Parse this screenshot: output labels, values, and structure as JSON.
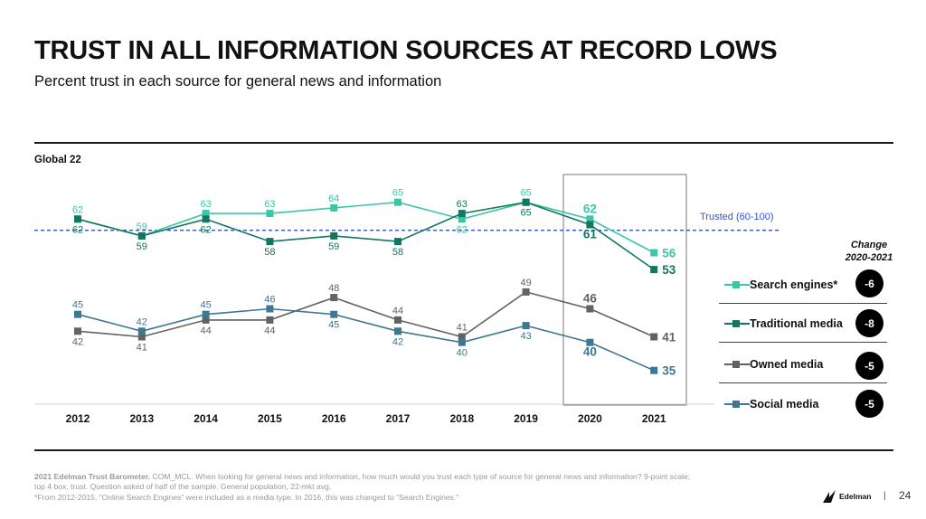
{
  "title": "TRUST IN ALL INFORMATION SOURCES AT RECORD LOWS",
  "subtitle": "Percent trust in each source for general news and information",
  "region_label": "Global 22",
  "trusted_label": "Trusted (60-100)",
  "change_header": [
    "Change",
    "2020-2021"
  ],
  "legend": [
    {
      "label": "Search engines*",
      "change": "-6",
      "color": "#3cc6a8"
    },
    {
      "label": "Traditional media",
      "change": "-8",
      "color": "#127760"
    },
    {
      "label": "Owned media",
      "change": "-5",
      "color": "#626262"
    },
    {
      "label": "Social media",
      "change": "-5",
      "color": "#3d7891"
    }
  ],
  "footnote": {
    "source": "2021 Edelman Trust Barometer.",
    "line1": " COM_MCL. When looking for general news and information, how much would you trust each type of source for general news and information? 9-point scale;",
    "line2": "top 4 box, trust. Question asked of half of the sample. General population, 22-mkt avg.",
    "line3": "*From 2012-2015, “Online Search Engines” were included as a media type. In 2016, this was changed to “Search Engines.”"
  },
  "logo_text": "Edelman",
  "page_number": "24",
  "chart_data": {
    "type": "line",
    "x": [
      "2012",
      "2013",
      "2014",
      "2015",
      "2016",
      "2017",
      "2018",
      "2019",
      "2020",
      "2021"
    ],
    "series": [
      {
        "name": "Search engines*",
        "color": "#3cc6a8",
        "values": [
          62,
          59,
          63,
          63,
          64,
          65,
          62,
          65,
          62,
          56
        ]
      },
      {
        "name": "Traditional media",
        "color": "#127760",
        "values": [
          62,
          59,
          62,
          58,
          59,
          58,
          63,
          65,
          61,
          53
        ]
      },
      {
        "name": "Owned media",
        "color": "#626262",
        "values": [
          42,
          41,
          44,
          44,
          48,
          44,
          41,
          49,
          46,
          41
        ]
      },
      {
        "name": "Social media",
        "color": "#3d7891",
        "values": [
          45,
          42,
          45,
          46,
          45,
          42,
          40,
          43,
          40,
          35
        ]
      }
    ],
    "reference_line": {
      "value": 60,
      "label": "Trusted (60-100)",
      "style": "dashed"
    },
    "highlight_years": [
      "2020",
      "2021"
    ],
    "grid": false,
    "legend_position": "right"
  }
}
